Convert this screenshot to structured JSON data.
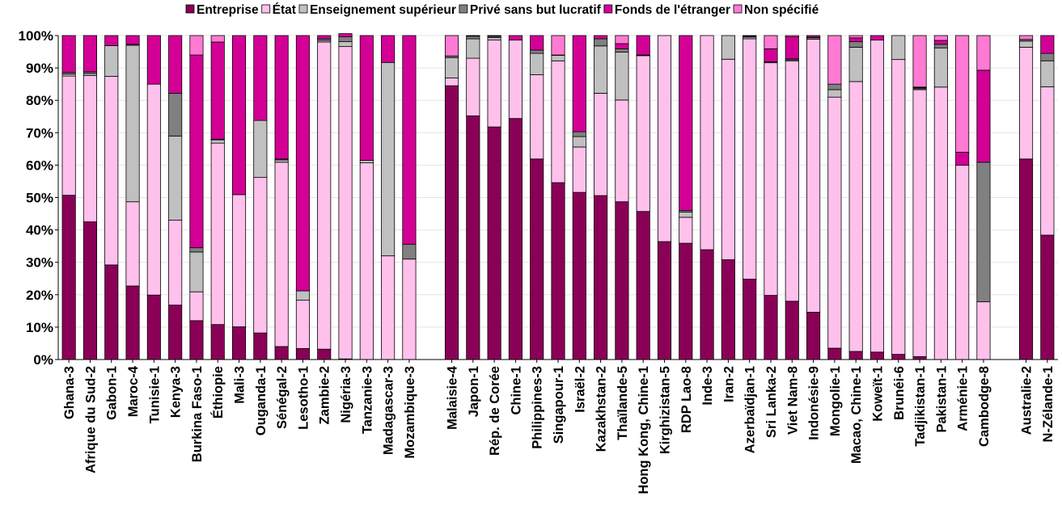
{
  "chart_data": {
    "type": "bar",
    "stacked": true,
    "percent": true,
    "ylim": [
      0,
      100
    ],
    "yticks": [
      "0%",
      "10%",
      "20%",
      "30%",
      "40%",
      "50%",
      "60%",
      "70%",
      "80%",
      "90%",
      "100%"
    ],
    "legend_position": "top",
    "grid": true,
    "colors": {
      "Entreprise": "#8b0057",
      "État": "#ffc1ec",
      "Enseignement supérieur": "#c0c0c0",
      "Privé sans but lucratif": "#808080",
      "Fonds de l'étranger": "#d40096",
      "Non spécifié": "#ff7ad2"
    },
    "groups": [
      [
        "Ghana-3",
        "Afrique du Sud-2",
        "Gabon-1",
        "Maroc-4",
        "Tunisie-1",
        "Kenya-3",
        "Burkina Faso-1",
        "Éthiopie",
        "Mali-3",
        "Ouganda-1",
        "Sénégal-2",
        "Lesotho-1",
        "Zambie-2",
        "Nigéria-3",
        "Tanzanie-3",
        "Madagascar-3",
        "Mozambique-3"
      ],
      [
        "Malaisie-4",
        "Japon-1",
        "Rép. de Corée",
        "Chine-1",
        "Philippines-3",
        "Singapour-1",
        "Israël-2",
        "Kazakhstan-2",
        "Thaïlande-5",
        "Hong Kong, Chine-1",
        "Kirghizistan-5",
        "RDP Lao-8",
        "Inde-3",
        "Iran-2",
        "Azerbaïdjan-1",
        "Sri Lanka-2",
        "Viet Nam-8",
        "Indonésie-9",
        "Mongolie-1",
        "Macao, Chine-1",
        "Koweït-1",
        "Brunéi-6",
        "Tadjikistan-1",
        "Pakistan-1",
        "Arménie-1",
        "Cambodge-8"
      ],
      [
        "Australie-2",
        "N-Zélande-1"
      ]
    ],
    "categories": [
      "Ghana-3",
      "Afrique du Sud-2",
      "Gabon-1",
      "Maroc-4",
      "Tunisie-1",
      "Kenya-3",
      "Burkina Faso-1",
      "Éthiopie",
      "Mali-3",
      "Ouganda-1",
      "Sénégal-2",
      "Lesotho-1",
      "Zambie-2",
      "Nigéria-3",
      "Tanzanie-3",
      "Madagascar-3",
      "Mozambique-3",
      "Malaisie-4",
      "Japon-1",
      "Rép. de Corée",
      "Chine-1",
      "Philippines-3",
      "Singapour-1",
      "Israël-2",
      "Kazakhstan-2",
      "Thaïlande-5",
      "Hong Kong, Chine-1",
      "Kirghizistan-5",
      "RDP Lao-8",
      "Inde-3",
      "Iran-2",
      "Azerbaïdjan-1",
      "Sri Lanka-2",
      "Viet Nam-8",
      "Indonésie-9",
      "Mongolie-1",
      "Macao, Chine-1",
      "Koweït-1",
      "Brunéi-6",
      "Tadjikistan-1",
      "Pakistan-1",
      "Arménie-1",
      "Cambodge-8",
      "Australie-2",
      "N-Zélande-1"
    ],
    "series": [
      {
        "name": "Entreprise",
        "values": [
          50.7,
          42.5,
          29.2,
          22.7,
          19.9,
          16.8,
          12.0,
          10.8,
          10.1,
          8.2,
          4.0,
          3.4,
          3.2,
          0.2,
          0.0,
          0.0,
          0.0,
          84.5,
          75.2,
          71.8,
          74.4,
          61.9,
          54.6,
          51.6,
          50.6,
          48.7,
          45.7,
          36.4,
          35.9,
          33.9,
          30.8,
          24.8,
          19.8,
          18.0,
          14.6,
          3.5,
          2.5,
          2.3,
          1.6,
          0.9,
          0.0,
          0.0,
          0.0,
          61.9,
          38.4
        ]
      },
      {
        "name": "État",
        "values": [
          36.8,
          45.2,
          58.2,
          26.0,
          65.1,
          26.2,
          8.9,
          56.0,
          40.8,
          48.0,
          56.9,
          14.9,
          94.8,
          96.4,
          60.7,
          32.0,
          31.0,
          2.4,
          17.8,
          26.8,
          24.2,
          26.0,
          37.6,
          14.0,
          31.6,
          31.4,
          48.1,
          63.6,
          8.0,
          66.1,
          61.9,
          74.2,
          71.8,
          74.2,
          84.3,
          77.5,
          83.3,
          96.3,
          91.0,
          82.4,
          84.1,
          60.0,
          17.8,
          34.5,
          45.8
        ]
      },
      {
        "name": "Enseignement supérieur",
        "values": [
          0.6,
          0.6,
          9.5,
          48.3,
          0.0,
          26.0,
          12.3,
          1.0,
          0.0,
          17.6,
          0.7,
          2.9,
          0.5,
          1.5,
          0.8,
          59.7,
          0.0,
          6.3,
          6.0,
          0.8,
          0.0,
          6.6,
          1.7,
          3.2,
          14.6,
          14.8,
          0.0,
          0.0,
          1.6,
          0.0,
          7.3,
          0.5,
          0.0,
          0.3,
          0.4,
          2.3,
          10.6,
          0.0,
          7.4,
          0.3,
          12.1,
          0.0,
          0.0,
          1.9,
          8.0
        ]
      },
      {
        "name": "Privé sans but lucratif",
        "values": [
          0.5,
          0.5,
          0.0,
          0.3,
          0.0,
          13.2,
          1.3,
          0.2,
          0.0,
          0.0,
          0.3,
          0.0,
          0.5,
          1.5,
          0.0,
          0.0,
          4.6,
          0.5,
          0.8,
          0.4,
          0.0,
          1.0,
          0.1,
          1.5,
          2.2,
          1.0,
          0.2,
          0.0,
          0.5,
          0.0,
          0.0,
          0.3,
          0.3,
          0.3,
          0.2,
          1.7,
          1.7,
          0.0,
          0.0,
          0.3,
          1.1,
          0.0,
          43.1,
          0.5,
          2.3
        ]
      },
      {
        "name": "Fonds de l'étranger",
        "values": [
          11.4,
          11.2,
          3.1,
          2.7,
          15.0,
          17.8,
          59.5,
          30.0,
          49.1,
          26.2,
          38.1,
          78.8,
          1.0,
          1.0,
          38.5,
          8.3,
          64.4,
          0.0,
          0.2,
          0.2,
          1.4,
          4.5,
          0.0,
          29.7,
          1.0,
          1.6,
          6.0,
          0.0,
          54.0,
          0.0,
          0.0,
          0.0,
          4.0,
          6.8,
          0.5,
          0.0,
          1.2,
          1.4,
          0.0,
          0.2,
          1.2,
          4.0,
          28.4,
          0.0,
          5.5
        ]
      },
      {
        "name": "Non spécifié",
        "values": [
          0.0,
          0.0,
          0.0,
          0.0,
          0.0,
          0.0,
          6.0,
          2.0,
          0.0,
          0.0,
          0.0,
          0.0,
          0.0,
          0.0,
          0.0,
          0.0,
          0.0,
          6.3,
          0.0,
          0.0,
          0.0,
          0.0,
          6.0,
          0.0,
          0.0,
          2.5,
          0.0,
          0.0,
          0.0,
          0.0,
          0.0,
          0.2,
          4.1,
          0.4,
          0.0,
          15.0,
          0.7,
          0.0,
          0.0,
          15.9,
          1.5,
          36.0,
          10.7,
          1.2,
          0.0
        ]
      }
    ]
  }
}
